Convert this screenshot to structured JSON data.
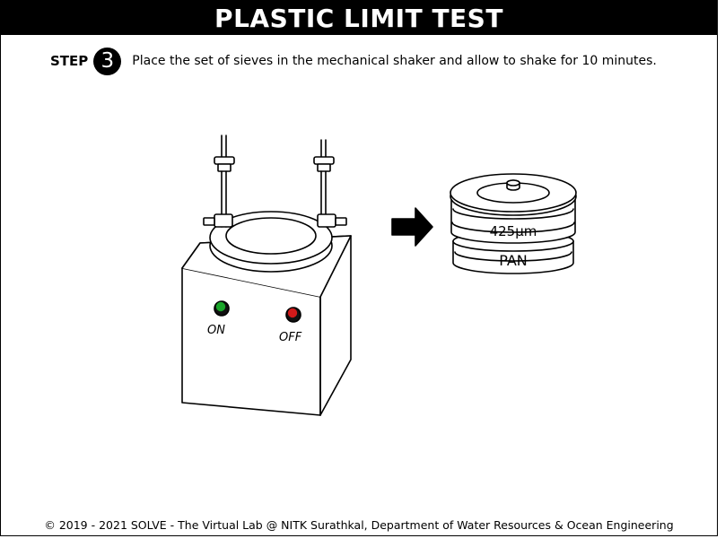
{
  "header": {
    "title": "PLASTIC LIMIT TEST"
  },
  "step": {
    "label": "STEP",
    "number": "3",
    "instruction": "Place the set of sieves in the mechanical shaker and allow to shake for 10 minutes."
  },
  "shaker": {
    "on_label": "ON",
    "off_label": "OFF",
    "on_color": "#1aa52a",
    "off_color": "#d11a1a"
  },
  "sieve_stack": {
    "sieve_label": "425µm",
    "pan_label": "PAN"
  },
  "footer": {
    "text": "© 2019 - 2021 SOLVE - The Virtual Lab @ NITK Surathkal, Department of Water Resources & Ocean Engineering"
  }
}
